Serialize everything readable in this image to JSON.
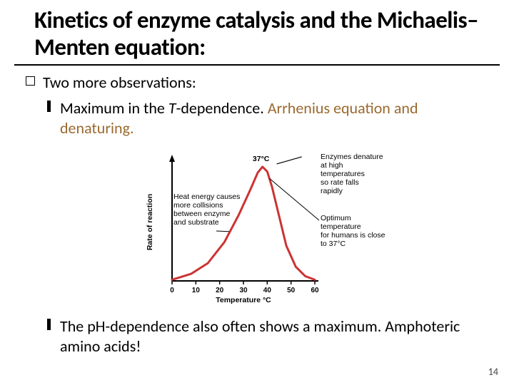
{
  "title": "Kinetics of enzyme catalysis and the Michaelis–Menten equation:",
  "heading": "Two more observations:",
  "bullet1_a": "Maximum in the ",
  "bullet1_b": "T",
  "bullet1_c": "-dependence. ",
  "bullet1_accent": "Arrhenius equation and denaturing.",
  "bullet2": "The pH-dependence also often shows a maximum. Amphoteric amino acids!",
  "page": "14",
  "chart": {
    "type": "line",
    "title_callout": "37°C",
    "curve_color": "#cc3333",
    "curve_width": 3,
    "axis_color": "#000000",
    "background_color": "#ffffff",
    "x_label": "Temperature °C",
    "y_label": "Rate of reaction",
    "x_ticks": [
      0,
      10,
      20,
      30,
      40,
      50,
      60
    ],
    "y_arrow": true,
    "annotations": [
      {
        "text": "Heat energy causes more collisions between enzyme and substrate",
        "side": "left"
      },
      {
        "text": "Enzymes denature at high temperatures so rate falls rapidly",
        "side": "right-top"
      },
      {
        "text": "Optimum temperature for humans is close to 37°C",
        "side": "right-mid"
      }
    ],
    "curve_points": [
      [
        0,
        0.01
      ],
      [
        8,
        0.06
      ],
      [
        15,
        0.15
      ],
      [
        22,
        0.33
      ],
      [
        28,
        0.56
      ],
      [
        33,
        0.78
      ],
      [
        36,
        0.92
      ],
      [
        38,
        0.97
      ],
      [
        40,
        0.93
      ],
      [
        42,
        0.8
      ],
      [
        45,
        0.55
      ],
      [
        48,
        0.3
      ],
      [
        52,
        0.12
      ],
      [
        56,
        0.04
      ],
      [
        60,
        0.01
      ]
    ],
    "xlim": [
      0,
      60
    ],
    "ylim": [
      0,
      1
    ],
    "font_size_annot": 10.5,
    "font_size_axis": 10.5,
    "font_size_tick": 10
  }
}
